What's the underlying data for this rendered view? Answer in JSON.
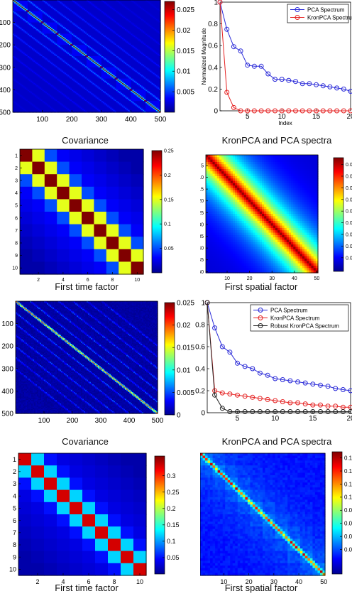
{
  "figure": {
    "captions": {
      "cov_a": "Covariance",
      "spec_a": "KronPCA and PCA spectra",
      "time_a": "First time factor",
      "spatial_a": "First spatial factor",
      "cov_b": "Covariance",
      "spec_b": "KronPCA and PCA spectra",
      "time_b": "First time factor",
      "spatial_b": "First spatial factor"
    }
  },
  "chart_data": [
    {
      "id": "cov_a",
      "type": "heatmap",
      "title": "",
      "x_ticks": [
        "100",
        "200",
        "300",
        "400",
        "500"
      ],
      "y_ticks": [
        "100",
        "200",
        "300",
        "400",
        "500"
      ],
      "colorbar_ticks": [
        "0.025",
        "0.02",
        "0.015",
        "0.01",
        "0.005"
      ],
      "colorbar_range": [
        0,
        0.027
      ],
      "pattern": "block-toeplitz banded, 10x10 blocks of 50"
    },
    {
      "id": "spec_a",
      "type": "line",
      "title": "",
      "xlabel": "Index",
      "ylabel": "Normalized Magnitude",
      "xlim": [
        1,
        20
      ],
      "ylim": [
        0,
        1
      ],
      "x_ticks": [
        "5",
        "10",
        "15",
        "20"
      ],
      "y_ticks": [
        "0",
        "0.2",
        "0.4",
        "0.6",
        "0.8",
        "1"
      ],
      "legend_position": "top-right",
      "x": [
        1,
        2,
        3,
        4,
        5,
        6,
        7,
        8,
        9,
        10,
        11,
        12,
        13,
        14,
        15,
        16,
        17,
        18,
        19,
        20
      ],
      "series": [
        {
          "name": "PCA Spectrum",
          "color": "#2a2ad8",
          "values": [
            1.0,
            0.75,
            0.59,
            0.55,
            0.42,
            0.41,
            0.41,
            0.34,
            0.29,
            0.29,
            0.28,
            0.27,
            0.25,
            0.25,
            0.24,
            0.23,
            0.22,
            0.21,
            0.2,
            0.18
          ]
        },
        {
          "name": "KronPCA Spectrum",
          "color": "#e52222",
          "values": [
            1.0,
            0.17,
            0.03,
            0,
            0,
            0,
            0,
            0,
            0,
            0,
            0,
            0,
            0,
            0,
            0,
            0,
            0,
            0,
            0,
            0
          ]
        }
      ]
    },
    {
      "id": "time_a",
      "type": "heatmap",
      "title": "",
      "x_ticks": [
        "2",
        "4",
        "6",
        "8",
        "10"
      ],
      "y_ticks": [
        "1",
        "2",
        "3",
        "4",
        "5",
        "6",
        "7",
        "8",
        "9",
        "10"
      ],
      "colorbar_ticks": [
        "0.25",
        "0.2",
        "0.15",
        "0.1",
        "0.05"
      ],
      "colorbar_range": [
        0,
        0.25
      ],
      "diagonal": 0.25,
      "first_off_diagonal": 0.15,
      "second_off_diagonal": 0.05
    },
    {
      "id": "spatial_a",
      "type": "heatmap",
      "title": "",
      "x_ticks": [
        "10",
        "20",
        "30",
        "40",
        "50"
      ],
      "y_ticks": [
        "5",
        "10",
        "15",
        "20",
        "25",
        "30",
        "35",
        "40",
        "45",
        "50"
      ],
      "colorbar_ticks": [
        "0.04",
        "0.04",
        "0.03",
        "0.03",
        "0.02",
        "0.02",
        "0.01",
        "0.01",
        "0.00"
      ],
      "colorbar_range": [
        0,
        0.045
      ],
      "pattern": "smooth toeplitz, decay with |i-j|"
    },
    {
      "id": "cov_b",
      "type": "heatmap",
      "title": "",
      "x_ticks": [
        "100",
        "200",
        "300",
        "400",
        "500"
      ],
      "y_ticks": [
        "100",
        "200",
        "300",
        "400",
        "500"
      ],
      "colorbar_ticks": [
        "0.025",
        "0.02",
        "0.015",
        "0.01",
        "0.005",
        "0"
      ],
      "colorbar_range": [
        0,
        0.025
      ],
      "pattern": "noisy banded estimate"
    },
    {
      "id": "spec_b",
      "type": "line",
      "title": "",
      "xlim": [
        1,
        20
      ],
      "ylim": [
        0,
        1
      ],
      "x_ticks": [
        "5",
        "10",
        "15",
        "20"
      ],
      "y_ticks": [
        "0",
        "0.2",
        "0.4",
        "0.6",
        "0.8",
        "1"
      ],
      "legend_position": "top-right",
      "x": [
        1,
        2,
        3,
        4,
        5,
        6,
        7,
        8,
        9,
        10,
        11,
        12,
        13,
        14,
        15,
        16,
        17,
        18,
        19,
        20
      ],
      "series": [
        {
          "name": "PCA Spectrum",
          "color": "#2a2ad8",
          "values": [
            1.0,
            0.77,
            0.6,
            0.55,
            0.45,
            0.42,
            0.4,
            0.36,
            0.34,
            0.31,
            0.3,
            0.29,
            0.28,
            0.27,
            0.26,
            0.25,
            0.24,
            0.22,
            0.21,
            0.2
          ]
        },
        {
          "name": "KronPCA Spectrum",
          "color": "#e52222",
          "values": [
            1.0,
            0.2,
            0.18,
            0.17,
            0.16,
            0.15,
            0.14,
            0.13,
            0.12,
            0.11,
            0.1,
            0.09,
            0.09,
            0.08,
            0.07,
            0.07,
            0.06,
            0.06,
            0.05,
            0.05
          ]
        },
        {
          "name": "Robust KronPCA Spectrum",
          "color": "#222222",
          "values": [
            1.0,
            0.16,
            0.04,
            0.01,
            0.01,
            0.01,
            0.01,
            0.01,
            0.01,
            0.01,
            0.01,
            0.01,
            0.01,
            0.01,
            0.01,
            0.01,
            0.01,
            0.01,
            0.01,
            0.01
          ]
        }
      ]
    },
    {
      "id": "time_b",
      "type": "heatmap",
      "title": "",
      "x_ticks": [
        "2",
        "4",
        "6",
        "8",
        "10"
      ],
      "y_ticks": [
        "1",
        "2",
        "3",
        "4",
        "5",
        "6",
        "7",
        "8",
        "9",
        "10"
      ],
      "colorbar_ticks": [
        "0.3",
        "0.25",
        "0.2",
        "0.15",
        "0.1",
        "0.05"
      ],
      "colorbar_range": [
        0,
        0.36
      ],
      "diagonal": 0.33,
      "first_off_diagonal": 0.12,
      "second_off_diagonal": 0.05
    },
    {
      "id": "spatial_b",
      "type": "heatmap",
      "title": "",
      "x_ticks": [
        "10",
        "20",
        "30",
        "40",
        "50"
      ],
      "y_ticks": [],
      "colorbar_ticks": [
        "0.1",
        "0.1",
        "0.1",
        "0.1",
        "0.0",
        "0.0",
        "0.0",
        "0.0"
      ],
      "colorbar_range": [
        0,
        0.14
      ],
      "pattern": "bright diagonal with faint block structure"
    }
  ]
}
